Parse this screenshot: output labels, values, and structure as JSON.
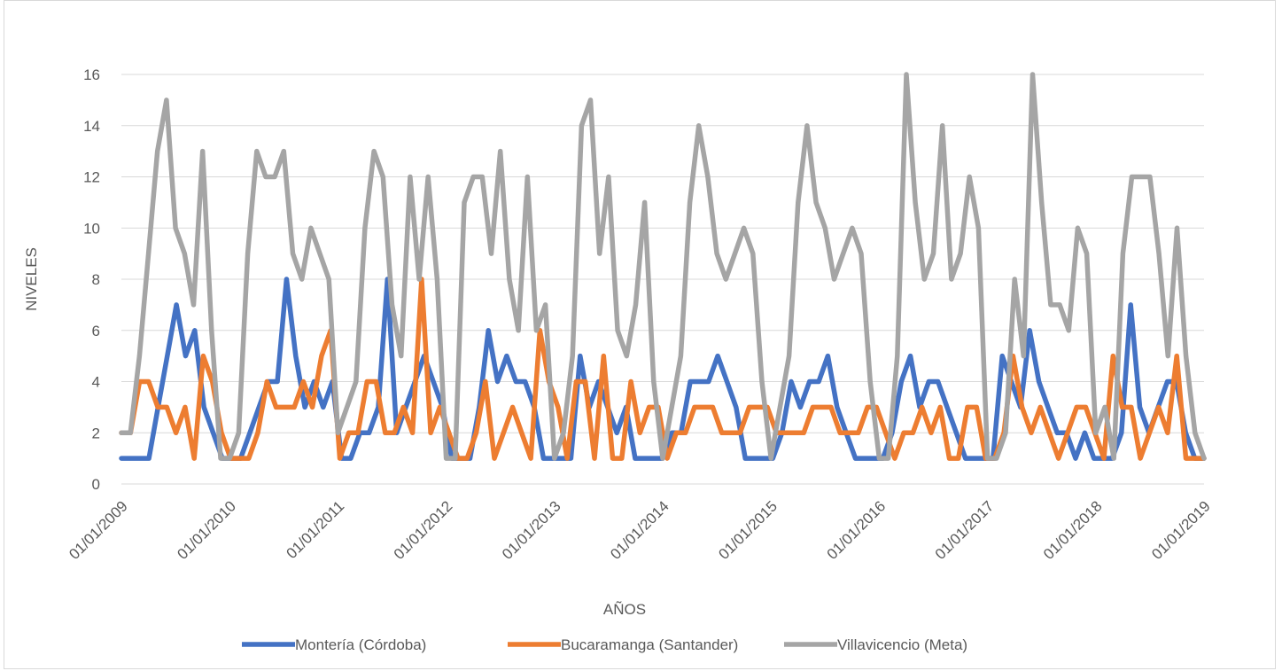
{
  "chart_data": {
    "type": "line",
    "title": "",
    "xlabel": "AÑOS",
    "ylabel": "NIVELES",
    "ylim": [
      0,
      16
    ],
    "yticks": [
      0,
      2,
      4,
      6,
      8,
      10,
      12,
      14,
      16
    ],
    "grid": true,
    "legend_position": "bottom",
    "x_tick_labels": [
      "01/01/2009",
      "01/01/2010",
      "01/01/2011",
      "01/01/2012",
      "01/01/2013",
      "01/01/2014",
      "01/01/2015",
      "01/01/2016",
      "01/01/2017",
      "01/01/2018",
      "01/01/2019"
    ],
    "series": [
      {
        "name": "Montería (Córdoba)",
        "color": "#4472C4",
        "values": [
          1,
          1,
          1,
          1,
          3,
          5,
          7,
          5,
          6,
          3,
          2,
          1,
          1,
          1,
          2,
          3,
          4,
          4,
          8,
          5,
          3,
          4,
          3,
          4,
          1,
          1,
          2,
          2,
          3,
          8,
          2,
          3,
          4,
          5,
          4,
          3,
          1,
          1,
          1,
          3,
          6,
          4,
          5,
          4,
          4,
          3,
          1,
          1,
          1,
          1,
          5,
          3,
          4,
          3,
          2,
          3,
          1,
          1,
          1,
          1,
          2,
          2,
          4,
          4,
          4,
          5,
          4,
          3,
          1,
          1,
          1,
          1,
          2,
          4,
          3,
          4,
          4,
          5,
          3,
          2,
          1,
          1,
          1,
          1,
          2,
          4,
          5,
          3,
          4,
          4,
          3,
          2,
          1,
          1,
          1,
          1,
          5,
          4,
          3,
          6,
          4,
          3,
          2,
          2,
          1,
          2,
          1,
          1,
          1,
          2,
          7,
          3,
          2,
          3,
          4,
          4,
          2,
          1,
          1
        ]
      },
      {
        "name": "Bucaramanga (Santander)",
        "color": "#ED7D31",
        "values": [
          2,
          2,
          4,
          4,
          3,
          3,
          2,
          3,
          1,
          5,
          4,
          2,
          1,
          1,
          1,
          2,
          4,
          3,
          3,
          3,
          4,
          3,
          5,
          6,
          1,
          2,
          2,
          4,
          4,
          2,
          2,
          3,
          2,
          8,
          2,
          3,
          2,
          1,
          1,
          2,
          4,
          1,
          2,
          3,
          2,
          1,
          6,
          4,
          3,
          1,
          4,
          4,
          1,
          5,
          1,
          1,
          4,
          2,
          3,
          3,
          1,
          2,
          2,
          3,
          3,
          3,
          2,
          2,
          2,
          3,
          3,
          3,
          2,
          2,
          2,
          2,
          3,
          3,
          3,
          2,
          2,
          2,
          3,
          3,
          2,
          1,
          2,
          2,
          3,
          2,
          3,
          1,
          1,
          3,
          3,
          1,
          1,
          2,
          5,
          3,
          2,
          3,
          2,
          1,
          2,
          3,
          3,
          2,
          1,
          5,
          3,
          3,
          1,
          2,
          3,
          2,
          5,
          1,
          1,
          1
        ]
      },
      {
        "name": "Villavicencio (Meta)",
        "color": "#A5A5A5",
        "values": [
          2,
          2,
          5,
          9,
          13,
          15,
          10,
          9,
          7,
          13,
          6,
          1,
          1,
          2,
          9,
          13,
          12,
          12,
          13,
          9,
          8,
          10,
          9,
          8,
          2,
          3,
          4,
          10,
          13,
          12,
          7,
          5,
          12,
          8,
          12,
          8,
          1,
          1,
          11,
          12,
          12,
          9,
          13,
          8,
          6,
          12,
          6,
          7,
          1,
          2,
          5,
          14,
          15,
          9,
          12,
          6,
          5,
          7,
          11,
          4,
          1,
          3,
          5,
          11,
          14,
          12,
          9,
          8,
          9,
          10,
          9,
          4,
          1,
          3,
          5,
          11,
          14,
          11,
          10,
          8,
          9,
          10,
          9,
          4,
          1,
          1,
          5,
          16,
          11,
          8,
          9,
          14,
          8,
          9,
          12,
          10,
          1,
          1,
          2,
          8,
          5,
          16,
          11,
          7,
          7,
          6,
          10,
          9,
          2,
          3,
          1,
          9,
          12,
          12,
          12,
          9,
          5,
          10,
          5,
          2,
          1
        ]
      }
    ]
  }
}
